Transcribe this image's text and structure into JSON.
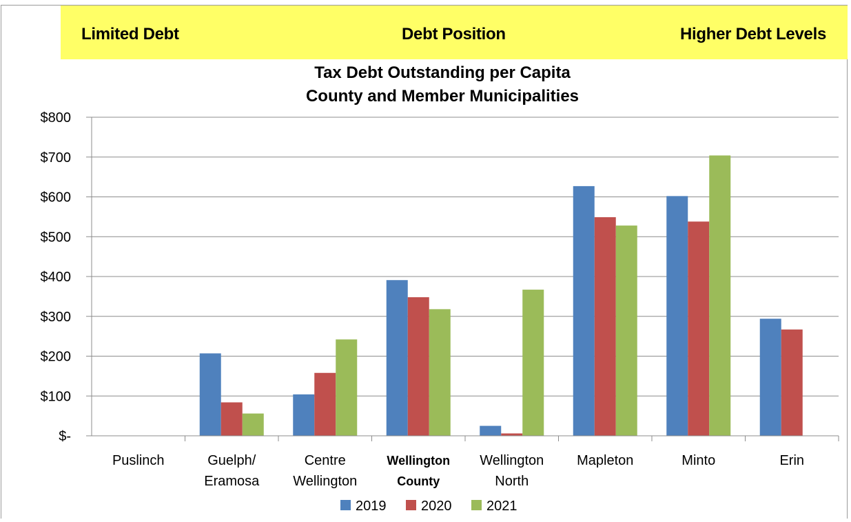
{
  "banner": {
    "left": "Limited Debt",
    "middle": "Debt Position",
    "right": "Higher Debt Levels",
    "color": "#ffff66"
  },
  "chart_data": {
    "type": "bar",
    "title": [
      "Tax Debt Outstanding per Capita",
      "County and Member Municipalities"
    ],
    "categories": [
      [
        "Puslinch"
      ],
      [
        "Guelph/",
        "Eramosa"
      ],
      [
        "Centre",
        "Wellington"
      ],
      [
        "Wellington",
        "County"
      ],
      [
        "Wellington",
        "North"
      ],
      [
        "Mapleton"
      ],
      [
        "Minto"
      ],
      [
        "Erin"
      ]
    ],
    "bold_category_index": 3,
    "series": [
      {
        "name": "2019",
        "color": "#4f81bd",
        "values": [
          0,
          207,
          104,
          391,
          25,
          627,
          602,
          294
        ]
      },
      {
        "name": "2020",
        "color": "#c0504d",
        "values": [
          0,
          84,
          158,
          348,
          6,
          549,
          538,
          267
        ]
      },
      {
        "name": "2021",
        "color": "#9bbb59",
        "values": [
          0,
          56,
          242,
          318,
          367,
          528,
          704,
          0
        ]
      }
    ],
    "ylim": [
      0,
      800
    ],
    "yticks": [
      0,
      100,
      200,
      300,
      400,
      500,
      600,
      700,
      800
    ],
    "ytick_labels": [
      "$-",
      "$100",
      "$200",
      "$300",
      "$400",
      "$500",
      "$600",
      "$700",
      "$800"
    ],
    "grid": true,
    "legend": "bottom-center",
    "xlabel": "",
    "ylabel": ""
  }
}
